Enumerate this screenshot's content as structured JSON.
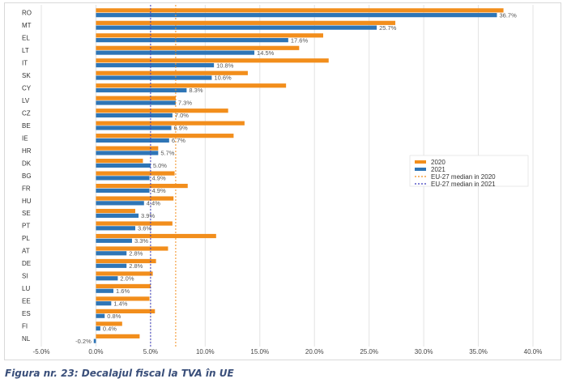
{
  "chart_data": {
    "type": "bar",
    "orientation": "horizontal",
    "categories": [
      "RO",
      "MT",
      "EL",
      "LT",
      "IT",
      "SK",
      "CY",
      "LV",
      "CZ",
      "BE",
      "IE",
      "HR",
      "DK",
      "BG",
      "FR",
      "HU",
      "SE",
      "PT",
      "PL",
      "AT",
      "DE",
      "SI",
      "LU",
      "EE",
      "ES",
      "FI",
      "NL"
    ],
    "series": [
      {
        "name": "2020",
        "color": "#f28e1c",
        "values": [
          37.3,
          27.4,
          20.8,
          18.6,
          21.3,
          13.9,
          17.4,
          7.3,
          12.1,
          13.6,
          12.6,
          5.7,
          4.3,
          7.2,
          8.4,
          7.1,
          3.6,
          7.0,
          11.0,
          6.6,
          5.5,
          5.2,
          5.0,
          4.9,
          5.4,
          2.4,
          4.0
        ]
      },
      {
        "name": "2021",
        "color": "#2e75b6",
        "values": [
          36.7,
          25.7,
          17.6,
          14.5,
          10.8,
          10.6,
          8.3,
          7.3,
          7.0,
          6.9,
          6.7,
          5.7,
          5.0,
          4.9,
          4.9,
          4.4,
          3.9,
          3.6,
          3.3,
          2.8,
          2.8,
          2.0,
          1.6,
          1.4,
          0.8,
          0.4,
          -0.2
        ]
      }
    ],
    "data_labels": [
      "36.7%",
      "25.7%",
      "17.6%",
      "14.5%",
      "10.8%",
      "10.6%",
      "8.3%",
      "7.3%",
      "7.0%",
      "6.9%",
      "6.7%",
      "5.7%",
      "5.0%",
      "4.9%",
      "4.9%",
      "4.4%",
      "3.9%",
      "3.6%",
      "3.3%",
      "2.8%",
      "2.8%",
      "2.0%",
      "1.6%",
      "1.4%",
      "0.8%",
      "0.4%",
      "-0.2%"
    ],
    "medians": [
      {
        "name": "EU-27 median in 2020",
        "value": 7.3,
        "color": "#f28e1c"
      },
      {
        "name": "EU-27 median in 2021",
        "value": 5.0,
        "color": "#3b3bbd"
      }
    ],
    "xlim": [
      -5,
      40
    ],
    "xticks": [
      -5,
      0,
      5,
      10,
      15,
      20,
      25,
      30,
      35,
      40
    ],
    "xtick_labels": [
      "-5.0%",
      "0.0%",
      "5.0%",
      "10.0%",
      "15.0%",
      "20.0%",
      "25.0%",
      "30.0%",
      "35.0%",
      "40.0%"
    ],
    "grid": "vertical",
    "legend_position": "right"
  },
  "caption": "Figura nr. 23: Decalajul fiscal la TVA în UE"
}
